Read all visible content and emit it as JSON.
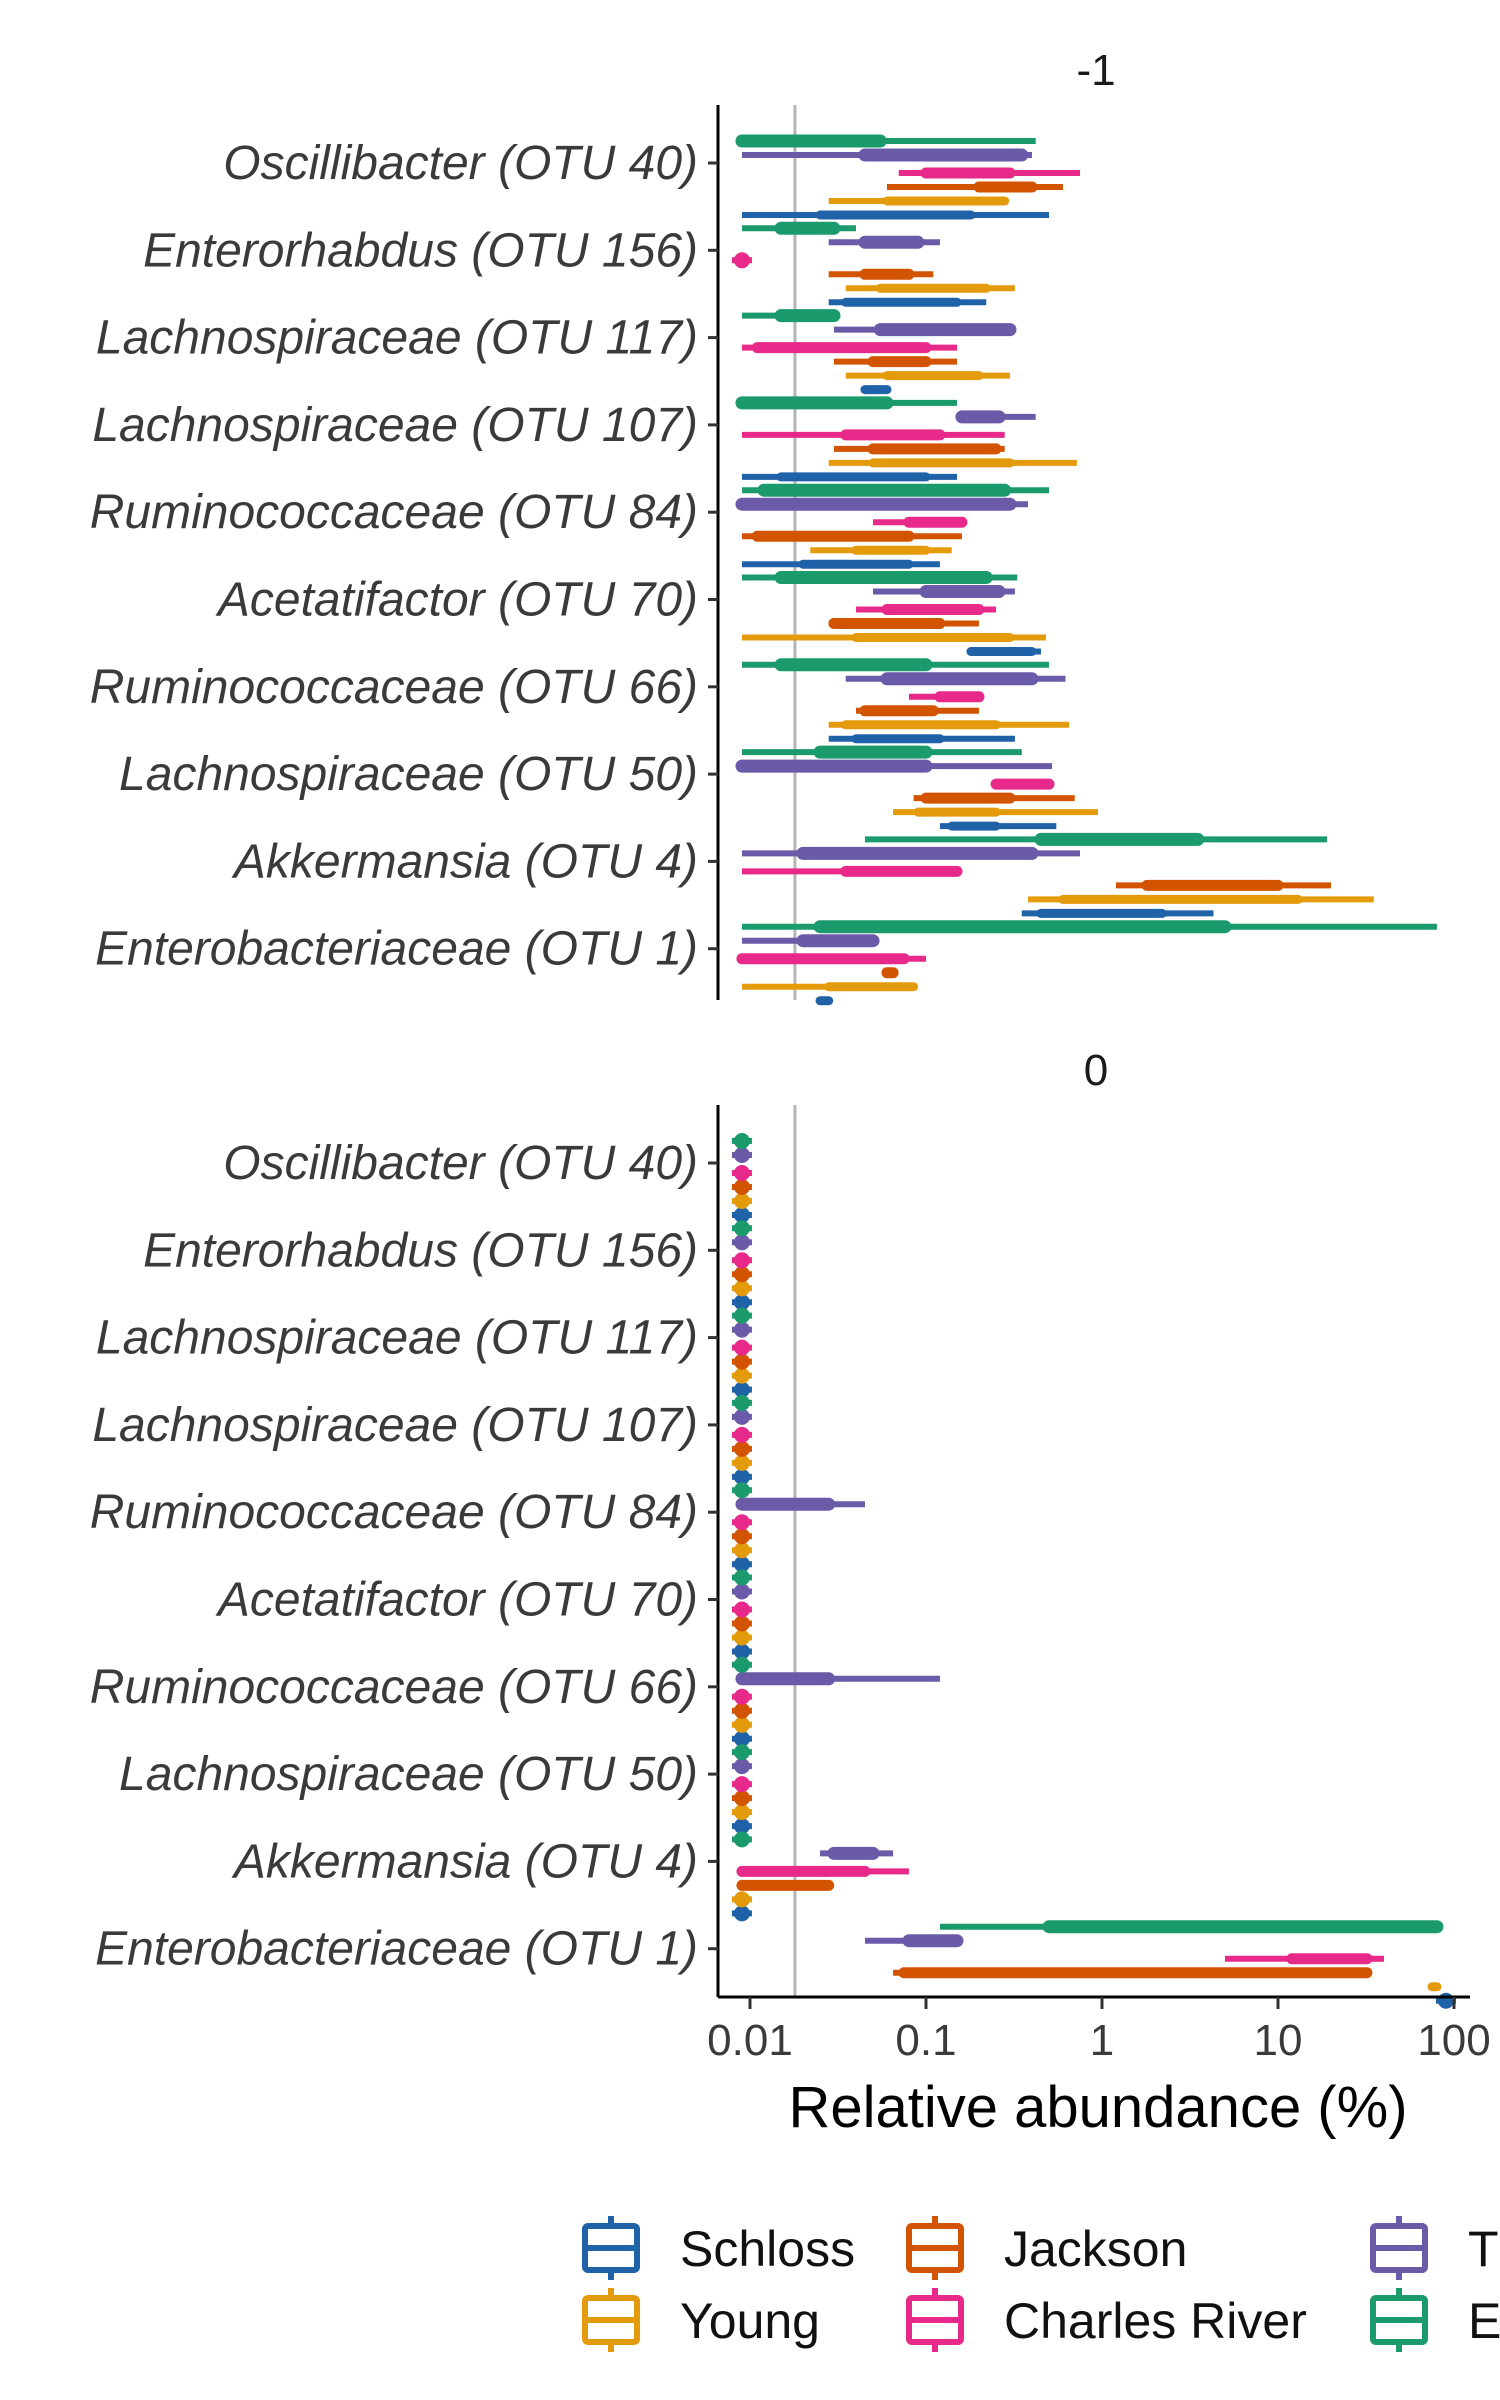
{
  "chart_data": {
    "type": "interval",
    "x_scale": "log10",
    "xlabel": "Relative abundance (%)",
    "xlim": [
      0.006,
      140
    ],
    "x_ticks": [
      {
        "value": 0.01,
        "label": "0.01"
      },
      {
        "value": 0.1,
        "label": "0.1"
      },
      {
        "value": 1,
        "label": "1"
      },
      {
        "value": 10,
        "label": "10"
      },
      {
        "value": 100,
        "label": "100"
      }
    ],
    "reference_line": 0.018,
    "categories": [
      "Oscillibacter (OTU 40)",
      "Enterorhabdus (OTU 156)",
      "Lachnospiraceae (OTU 117)",
      "Lachnospiraceae (OTU 107)",
      "Ruminococcaceae (OTU 84)",
      "Acetatifactor (OTU 70)",
      "Ruminococcaceae (OTU 66)",
      "Lachnospiraceae (OTU 50)",
      "Akkermansia (OTU 4)",
      "Enterobacteriaceae (OTU 1)"
    ],
    "legend": {
      "placement": "bottom",
      "entries": [
        {
          "label": "Schloss",
          "color": "#1f62a8"
        },
        {
          "label": "Young",
          "color": "#e39b0b"
        },
        {
          "label": "Jackson",
          "color": "#d35400"
        },
        {
          "label": "Charles River",
          "color": "#e7298a"
        },
        {
          "label": "T",
          "color": "#6a5aa8"
        },
        {
          "label": "E",
          "color": "#1b9a6b"
        }
      ]
    },
    "series_order": [
      "Schloss",
      "Young",
      "Jackson",
      "Charles River",
      "T",
      "E"
    ],
    "panels": [
      {
        "title": "-1",
        "data": {
          "Oscillibacter (OTU 40)": {
            "Schloss": [
              0.009,
              0.025,
              0.18,
              0.5
            ],
            "Young": [
              0.028,
              0.06,
              0.28,
              0.28
            ],
            "Jackson": [
              0.06,
              0.2,
              0.4,
              0.6
            ],
            "Charles River": [
              0.07,
              0.1,
              0.3,
              0.75
            ],
            "T": [
              0.009,
              0.045,
              0.35,
              0.4
            ],
            "E": [
              0.009,
              0.009,
              0.055,
              0.42
            ]
          },
          "Enterorhabdus (OTU 156)": {
            "Schloss": [
              0.028,
              0.035,
              0.15,
              0.22
            ],
            "Young": [
              0.035,
              0.055,
              0.22,
              0.32
            ],
            "Jackson": [
              0.028,
              0.045,
              0.08,
              0.11
            ],
            "Charles River": [
              0.009,
              0.009,
              0.009,
              0.009
            ],
            "T": [
              0.028,
              0.045,
              0.09,
              0.12
            ],
            "E": [
              0.009,
              0.015,
              0.03,
              0.04
            ]
          },
          "Lachnospiraceae (OTU 117)": {
            "Schloss": [
              0.045,
              0.045,
              0.06,
              0.06
            ],
            "Young": [
              0.035,
              0.06,
              0.2,
              0.3
            ],
            "Jackson": [
              0.03,
              0.05,
              0.1,
              0.15
            ],
            "Charles River": [
              0.009,
              0.011,
              0.1,
              0.15
            ],
            "T": [
              0.03,
              0.055,
              0.3,
              0.32
            ],
            "E": [
              0.009,
              0.015,
              0.03,
              0.03
            ]
          },
          "Lachnospiraceae (OTU 107)": {
            "Schloss": [
              0.009,
              0.015,
              0.1,
              0.15
            ],
            "Young": [
              0.028,
              0.05,
              0.3,
              0.72
            ],
            "Jackson": [
              0.03,
              0.05,
              0.25,
              0.28
            ],
            "Charles River": [
              0.009,
              0.035,
              0.12,
              0.28
            ],
            "T": [
              0.15,
              0.16,
              0.26,
              0.42
            ],
            "E": [
              0.009,
              0.009,
              0.06,
              0.15
            ]
          },
          "Ruminococcaceae (OTU 84)": {
            "Schloss": [
              0.009,
              0.02,
              0.08,
              0.12
            ],
            "Young": [
              0.022,
              0.04,
              0.1,
              0.14
            ],
            "Jackson": [
              0.009,
              0.011,
              0.08,
              0.16
            ],
            "Charles River": [
              0.05,
              0.08,
              0.16,
              0.16
            ],
            "T": [
              0.009,
              0.009,
              0.3,
              0.38
            ],
            "E": [
              0.009,
              0.012,
              0.28,
              0.5
            ]
          },
          "Acetatifactor (OTU 70)": {
            "Schloss": [
              0.18,
              0.18,
              0.4,
              0.45
            ],
            "Young": [
              0.009,
              0.04,
              0.3,
              0.48
            ],
            "Jackson": [
              0.028,
              0.03,
              0.12,
              0.2
            ],
            "Charles River": [
              0.04,
              0.06,
              0.2,
              0.25
            ],
            "T": [
              0.05,
              0.1,
              0.26,
              0.32
            ],
            "E": [
              0.009,
              0.015,
              0.22,
              0.33
            ]
          },
          "Ruminococcaceae (OTU 66)": {
            "Schloss": [
              0.028,
              0.04,
              0.12,
              0.32
            ],
            "Young": [
              0.028,
              0.035,
              0.25,
              0.65
            ],
            "Jackson": [
              0.04,
              0.045,
              0.11,
              0.2
            ],
            "Charles River": [
              0.08,
              0.12,
              0.2,
              0.2
            ],
            "T": [
              0.035,
              0.06,
              0.4,
              0.62
            ],
            "E": [
              0.009,
              0.015,
              0.1,
              0.5
            ]
          },
          "Lachnospiraceae (OTU 50)": {
            "Schloss": [
              0.12,
              0.14,
              0.25,
              0.55
            ],
            "Young": [
              0.065,
              0.09,
              0.25,
              0.95
            ],
            "Jackson": [
              0.085,
              0.1,
              0.3,
              0.7
            ],
            "Charles River": [
              0.25,
              0.25,
              0.5,
              0.5
            ],
            "T": [
              0.009,
              0.009,
              0.1,
              0.52
            ],
            "E": [
              0.009,
              0.025,
              0.1,
              0.35
            ]
          },
          "Akkermansia (OTU 4)": {
            "Schloss": [
              0.35,
              0.45,
              2.2,
              4.3
            ],
            "Young": [
              0.38,
              0.6,
              13,
              35
            ],
            "Jackson": [
              1.2,
              1.8,
              10,
              20
            ],
            "Charles River": [
              0.009,
              0.035,
              0.15,
              0.15
            ],
            "T": [
              0.009,
              0.02,
              0.4,
              0.75
            ],
            "E": [
              0.045,
              0.45,
              3.5,
              19
            ]
          },
          "Enterobacteriaceae (OTU 1)": {
            "Schloss": [
              0.025,
              0.025,
              0.028,
              0.028
            ],
            "Young": [
              0.009,
              0.028,
              0.085,
              0.085
            ],
            "Jackson": [
              0.06,
              0.06,
              0.065,
              0.065
            ],
            "Charles River": [
              0.009,
              0.009,
              0.075,
              0.1
            ],
            "T": [
              0.009,
              0.02,
              0.05,
              0.05
            ],
            "E": [
              0.009,
              0.025,
              5,
              80
            ]
          }
        }
      },
      {
        "title": "0",
        "data": {
          "Oscillibacter (OTU 40)": {
            "Schloss": [
              0.009,
              0.009,
              0.009,
              0.009
            ],
            "Young": [
              0.009,
              0.009,
              0.009,
              0.009
            ],
            "Jackson": [
              0.009,
              0.009,
              0.009,
              0.009
            ],
            "Charles River": [
              0.009,
              0.009,
              0.009,
              0.009
            ],
            "T": [
              0.009,
              0.009,
              0.009,
              0.009
            ],
            "E": [
              0.009,
              0.009,
              0.009,
              0.009
            ]
          },
          "Enterorhabdus (OTU 156)": {
            "Schloss": [
              0.009,
              0.009,
              0.009,
              0.009
            ],
            "Young": [
              0.009,
              0.009,
              0.009,
              0.009
            ],
            "Jackson": [
              0.009,
              0.009,
              0.009,
              0.009
            ],
            "Charles River": [
              0.009,
              0.009,
              0.009,
              0.009
            ],
            "T": [
              0.009,
              0.009,
              0.009,
              0.009
            ],
            "E": [
              0.009,
              0.009,
              0.009,
              0.009
            ]
          },
          "Lachnospiraceae (OTU 117)": {
            "Schloss": [
              0.009,
              0.009,
              0.009,
              0.009
            ],
            "Young": [
              0.009,
              0.009,
              0.009,
              0.009
            ],
            "Jackson": [
              0.009,
              0.009,
              0.009,
              0.009
            ],
            "Charles River": [
              0.009,
              0.009,
              0.009,
              0.009
            ],
            "T": [
              0.009,
              0.009,
              0.009,
              0.009
            ],
            "E": [
              0.009,
              0.009,
              0.009,
              0.009
            ]
          },
          "Lachnospiraceae (OTU 107)": {
            "Schloss": [
              0.009,
              0.009,
              0.009,
              0.009
            ],
            "Young": [
              0.009,
              0.009,
              0.009,
              0.009
            ],
            "Jackson": [
              0.009,
              0.009,
              0.009,
              0.009
            ],
            "Charles River": [
              0.009,
              0.009,
              0.009,
              0.009
            ],
            "T": [
              0.009,
              0.009,
              0.009,
              0.009
            ],
            "E": [
              0.009,
              0.009,
              0.009,
              0.009
            ]
          },
          "Ruminococcaceae (OTU 84)": {
            "Schloss": [
              0.009,
              0.009,
              0.009,
              0.009
            ],
            "Young": [
              0.009,
              0.009,
              0.009,
              0.009
            ],
            "Jackson": [
              0.009,
              0.009,
              0.009,
              0.009
            ],
            "Charles River": [
              0.009,
              0.009,
              0.009,
              0.009
            ],
            "T": [
              0.009,
              0.009,
              0.028,
              0.045
            ],
            "E": [
              0.009,
              0.009,
              0.009,
              0.009
            ]
          },
          "Acetatifactor (OTU 70)": {
            "Schloss": [
              0.009,
              0.009,
              0.009,
              0.009
            ],
            "Young": [
              0.009,
              0.009,
              0.009,
              0.009
            ],
            "Jackson": [
              0.009,
              0.009,
              0.009,
              0.009
            ],
            "Charles River": [
              0.009,
              0.009,
              0.009,
              0.009
            ],
            "T": [
              0.009,
              0.009,
              0.009,
              0.009
            ],
            "E": [
              0.009,
              0.009,
              0.009,
              0.009
            ]
          },
          "Ruminococcaceae (OTU 66)": {
            "Schloss": [
              0.009,
              0.009,
              0.009,
              0.009
            ],
            "Young": [
              0.009,
              0.009,
              0.009,
              0.009
            ],
            "Jackson": [
              0.009,
              0.009,
              0.009,
              0.009
            ],
            "Charles River": [
              0.009,
              0.009,
              0.009,
              0.009
            ],
            "T": [
              0.009,
              0.009,
              0.028,
              0.12
            ],
            "E": [
              0.009,
              0.009,
              0.009,
              0.009
            ]
          },
          "Lachnospiraceae (OTU 50)": {
            "Schloss": [
              0.009,
              0.009,
              0.009,
              0.009
            ],
            "Young": [
              0.009,
              0.009,
              0.009,
              0.009
            ],
            "Jackson": [
              0.009,
              0.009,
              0.009,
              0.009
            ],
            "Charles River": [
              0.009,
              0.009,
              0.009,
              0.009
            ],
            "T": [
              0.009,
              0.009,
              0.009,
              0.009
            ],
            "E": [
              0.009,
              0.009,
              0.009,
              0.009
            ]
          },
          "Akkermansia (OTU 4)": {
            "Schloss": [
              0.009,
              0.009,
              0.009,
              0.009
            ],
            "Young": [
              0.009,
              0.009,
              0.009,
              0.009
            ],
            "Jackson": [
              0.009,
              0.009,
              0.028,
              0.028
            ],
            "Charles River": [
              0.009,
              0.009,
              0.045,
              0.08
            ],
            "T": [
              0.025,
              0.03,
              0.05,
              0.065
            ],
            "E": [
              0.009,
              0.009,
              0.009,
              0.009
            ]
          },
          "Enterobacteriaceae (OTU 1)": {
            "Schloss": [
              90,
              90,
              90,
              90
            ],
            "Young": [
              75,
              75,
              80,
              80
            ],
            "Jackson": [
              0.065,
              0.075,
              32,
              32
            ],
            "Charles River": [
              5,
              12,
              32,
              40
            ],
            "T": [
              0.045,
              0.08,
              0.15,
              0.15
            ],
            "E": [
              0.12,
              0.5,
              80,
              80
            ]
          }
        }
      }
    ]
  }
}
